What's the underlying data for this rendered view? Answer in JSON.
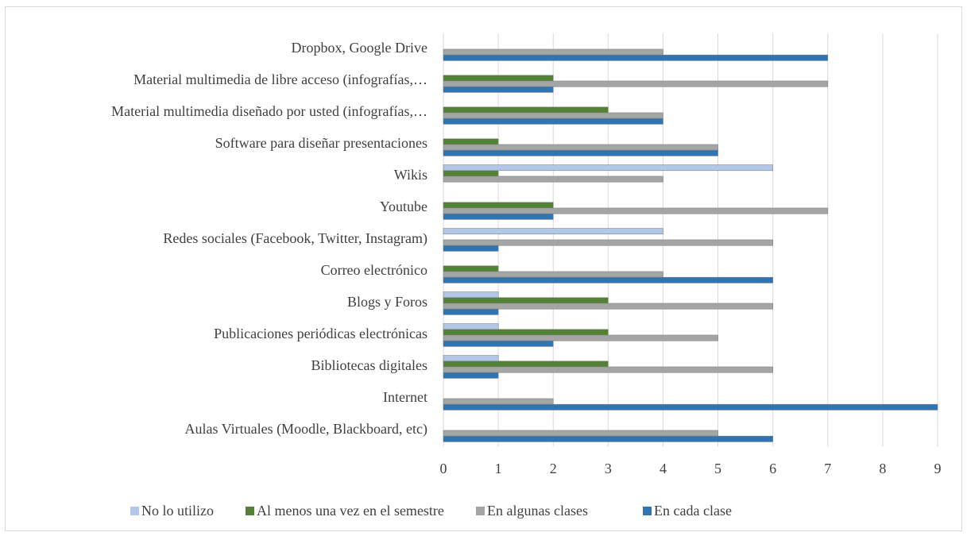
{
  "chart_data": {
    "type": "bar",
    "orientation": "horizontal",
    "categories": [
      "Aulas Virtuales (Moodle, Blackboard, etc)",
      "Internet",
      "Bibliotecas digitales",
      "Publicaciones periódicas electrónicas",
      "Blogs y Foros",
      "Correo electrónico",
      "Redes sociales (Facebook, Twitter, Instagram)",
      "Youtube",
      "Wikis",
      "Software para diseñar presentaciones",
      "Material multimedia diseñado por usted (infografías,…",
      "Material multimedia de libre acceso (infografías,…",
      "Dropbox, Google Drive"
    ],
    "series": [
      {
        "name": "No lo utilizo",
        "color": "#b4c7e7",
        "values": [
          0,
          0,
          1,
          1,
          1,
          0,
          4,
          0,
          6,
          0,
          0,
          0,
          0
        ]
      },
      {
        "name": "Al menos una vez en el semestre",
        "color": "#548235",
        "values": [
          0,
          0,
          3,
          3,
          3,
          1,
          0,
          2,
          1,
          1,
          3,
          2,
          0
        ]
      },
      {
        "name": "En algunas clases",
        "color": "#a5a5a5",
        "values": [
          5,
          2,
          6,
          5,
          6,
          4,
          6,
          7,
          4,
          5,
          4,
          7,
          4
        ]
      },
      {
        "name": "En cada clase",
        "color": "#2e75b6",
        "values": [
          6,
          9,
          1,
          2,
          1,
          6,
          1,
          2,
          0,
          5,
          4,
          2,
          7
        ]
      }
    ],
    "xlim": [
      0,
      9
    ],
    "xticks": [
      0,
      1,
      2,
      3,
      4,
      5,
      6,
      7,
      8,
      9
    ],
    "grid": true,
    "legend": "bottom"
  }
}
